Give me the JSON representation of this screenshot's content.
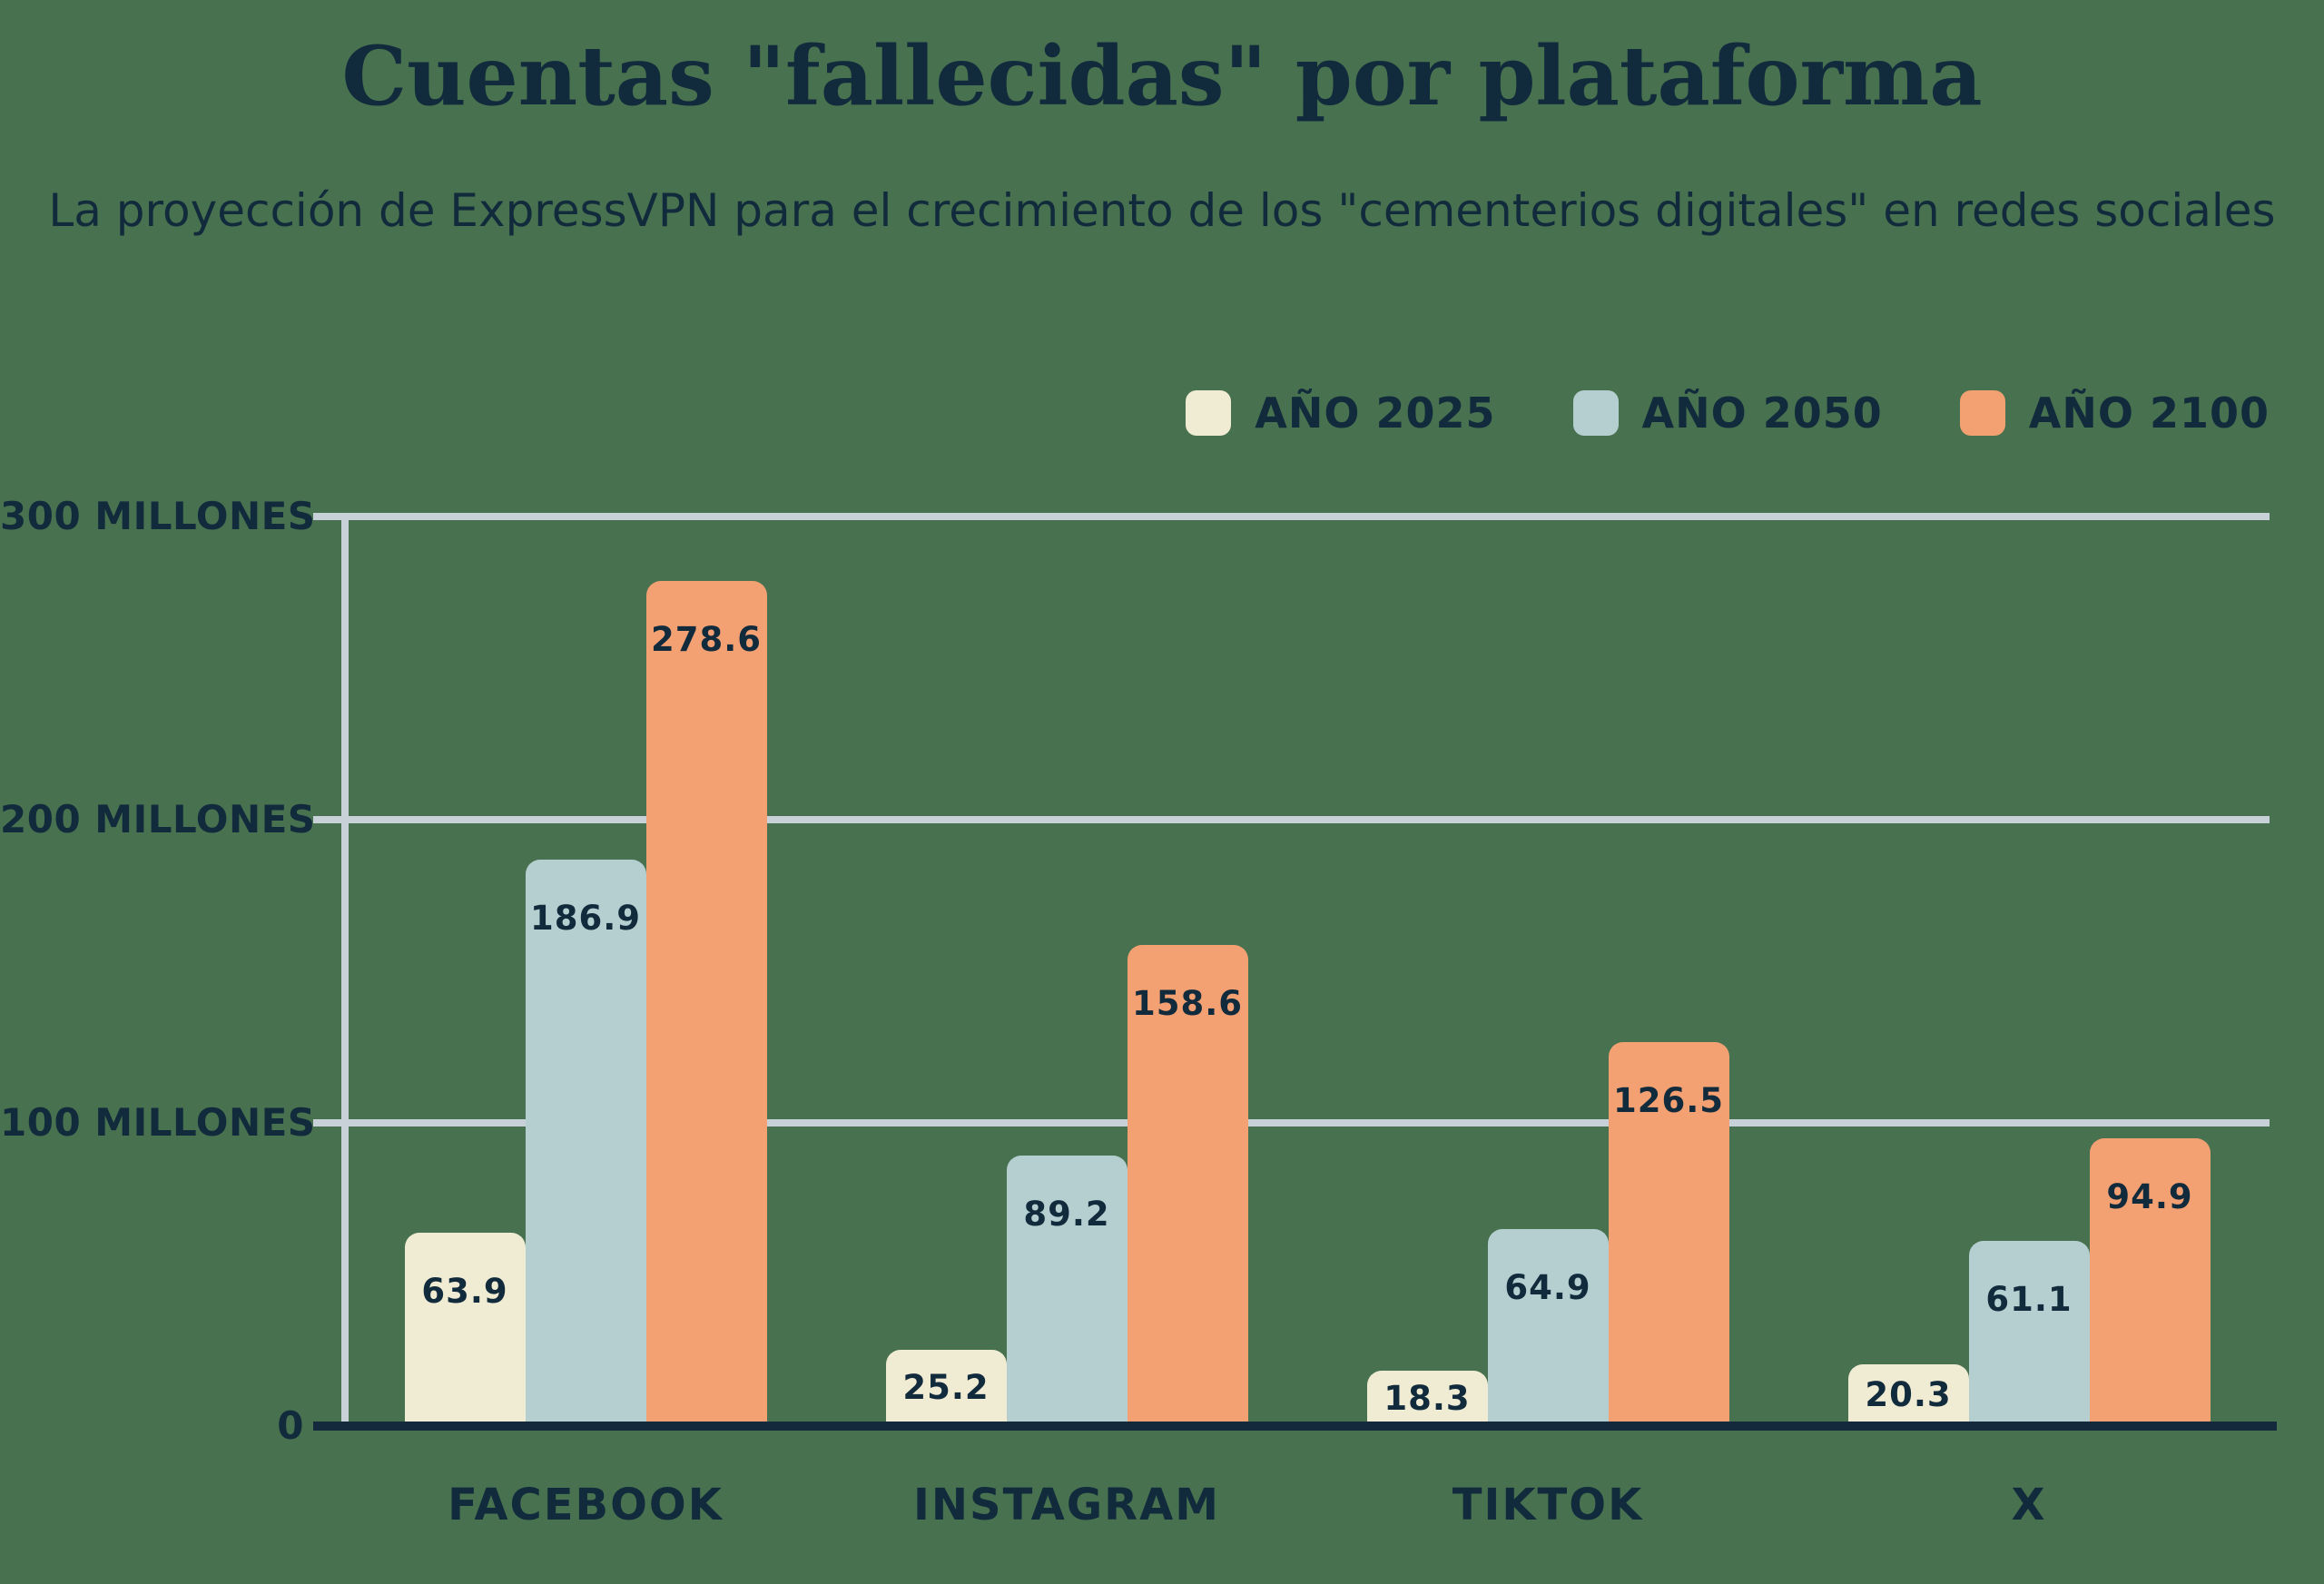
{
  "page": {
    "background_color": "#48714F",
    "text_color": "#112B3C",
    "grid_color": "#C9D1D8",
    "baseline_color": "#14293B"
  },
  "header": {
    "title": "Cuentas \"fallecidas\" por plataforma",
    "subtitle": "La proyección de ExpressVPN para el crecimiento de los \"cementerios digitales\" en redes sociales"
  },
  "legend": {
    "items": [
      {
        "label": "AÑO 2025",
        "color": "#F0EBD3"
      },
      {
        "label": "AÑO 2050",
        "color": "#B5CFD1"
      },
      {
        "label": "AÑO 2100",
        "color": "#F3A173"
      }
    ]
  },
  "chart_data": {
    "type": "bar",
    "title": "Cuentas \"fallecidas\" por plataforma",
    "subtitle": "La proyección de ExpressVPN para el crecimiento de los \"cementerios digitales\" en redes sociales",
    "categories": [
      "FACEBOOK",
      "INSTAGRAM",
      "TIKTOK",
      "X"
    ],
    "series": [
      {
        "name": "AÑO 2025",
        "color": "#F0EBD3",
        "values": [
          63.9,
          25.2,
          18.3,
          20.3
        ]
      },
      {
        "name": "AÑO 2050",
        "color": "#B5CFD1",
        "values": [
          186.9,
          89.2,
          64.9,
          61.1
        ]
      },
      {
        "name": "AÑO 2100",
        "color": "#F3A173",
        "values": [
          278.6,
          158.6,
          126.5,
          94.9
        ]
      }
    ],
    "y_ticks": [
      {
        "value": 300,
        "label": "300 MILLONES"
      },
      {
        "value": 200,
        "label": "200 MILLONES"
      },
      {
        "value": 100,
        "label": "100 MILLONES"
      },
      {
        "value": 0,
        "label": "0"
      }
    ],
    "ylim": [
      0,
      300
    ],
    "grid": "horizontal",
    "legend_position": "top-right",
    "value_labels": "inside-top"
  }
}
